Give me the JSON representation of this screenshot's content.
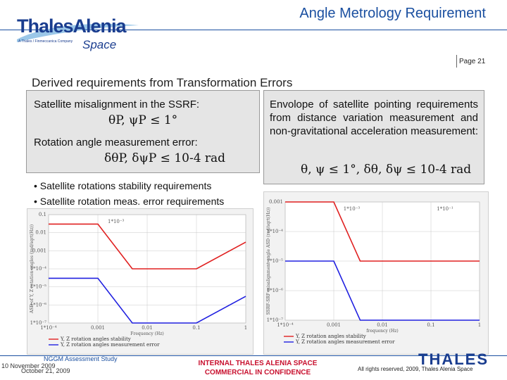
{
  "header": {
    "title": "Angle Metrology Requirement",
    "page": "Page 21"
  },
  "logo": {
    "name_main": "ThalesAlenia",
    "name_sub": "Space",
    "tagline": "A Thales / Finmeccanica Company",
    "icon": "thales-alenia-swoosh-logo"
  },
  "section_title": "Derived requirements from Transformation Errors",
  "left_box": {
    "line1": "Satellite misalignment in the SSRF:",
    "formula1": "θP, ψP ≤ 1°",
    "line2": "Rotation angle measurement error:",
    "formula2": "δθP, δψP ≤ 10-4 rad"
  },
  "right_box": {
    "text": "Envolope of satellite pointing requirements from distance variation measurement and non-gravitational acceleration measurement:",
    "formula": "θ, ψ ≤ 1°, δθ, δψ ≤ 10-4 rad"
  },
  "bullets": [
    "• Satellite rotations stability requirements",
    "• Satellite rotation meas. error requirements"
  ],
  "chart_data": [
    {
      "type": "line",
      "xscale": "log",
      "yscale": "log",
      "xlim": [
        0.0001,
        1
      ],
      "ylim": [
        1e-07,
        0.1
      ],
      "xlabel": "Frequency (Hz)",
      "ylabel": "ASD of Y, Z rotation angles (rad/sqrt(Hz))",
      "x_ticks": [
        "1*10⁻⁴",
        "0.001",
        "0.01",
        "0.1",
        "1"
      ],
      "y_ticks": [
        "0.1",
        "0.01",
        "0.001",
        "1*10⁻⁴",
        "1*10⁻⁵",
        "1*10⁻⁶",
        "1*10⁻⁷"
      ],
      "annotations": [
        "1*10⁻³"
      ],
      "grid": true,
      "legend_position": "bottom-left",
      "series": [
        {
          "name": "Y, Z rotation angles stability",
          "color": "#e02020",
          "x": [
            0.0001,
            0.001,
            0.005,
            0.1,
            1
          ],
          "y": [
            0.03,
            0.03,
            0.0001,
            0.0001,
            0.003
          ]
        },
        {
          "name": "Y, Z rotation angles measurement error",
          "color": "#2020e0",
          "x": [
            0.0001,
            0.001,
            0.005,
            0.1,
            1
          ],
          "y": [
            3e-05,
            3e-05,
            1e-07,
            1e-07,
            3e-06
          ]
        }
      ]
    },
    {
      "type": "line",
      "xscale": "log",
      "yscale": "log",
      "xlim": [
        0.0001,
        1
      ],
      "ylim": [
        1e-07,
        0.001
      ],
      "xlabel": "frequency (Hz)",
      "ylabel": "SSRF-SRF misalignment angle ASD (rad/sqrt(Hz))",
      "x_ticks": [
        "1*10⁻⁴",
        "0.001",
        "0.01",
        "0.1",
        "1"
      ],
      "y_ticks": [
        "0.001",
        "1*10⁻⁴",
        "1*10⁻⁵",
        "1*10⁻⁶",
        "1*10⁻⁷"
      ],
      "annotations": [
        "1*10⁻³",
        "1*10⁻¹"
      ],
      "grid": true,
      "legend_position": "bottom-left",
      "series": [
        {
          "name": "Y, Z rotation angles stability",
          "color": "#e02020",
          "x": [
            0.0001,
            0.001,
            0.0035,
            1
          ],
          "y": [
            0.001,
            0.001,
            1e-05,
            1e-05
          ]
        },
        {
          "name": "Y, Z rotation angles measurement error",
          "color": "#2020e0",
          "x": [
            0.0001,
            0.001,
            0.0035,
            1
          ],
          "y": [
            1e-05,
            1e-05,
            1e-07,
            1e-07
          ]
        }
      ]
    }
  ],
  "footer": {
    "study": "NGGM Assessment Study",
    "date1": "10 November 2009",
    "date2": "October 21, 2009",
    "confidential_line1": "INTERNAL THALES ALENIA SPACE",
    "confidential_line2": "COMMERCIAL IN CONFIDENCE",
    "rights": "All rights reserved, 2009, Thales Alenia Space",
    "brand": "THALES"
  }
}
